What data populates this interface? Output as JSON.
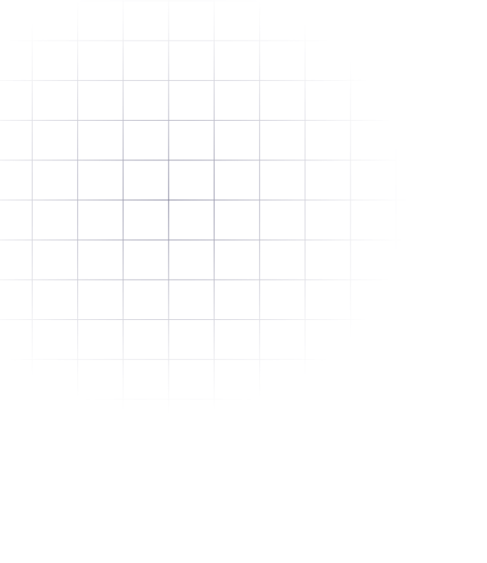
{
  "background": {
    "pattern": "grid",
    "fade": "radial",
    "line_color": "#7c7c96",
    "page_color": "#ffffff"
  }
}
